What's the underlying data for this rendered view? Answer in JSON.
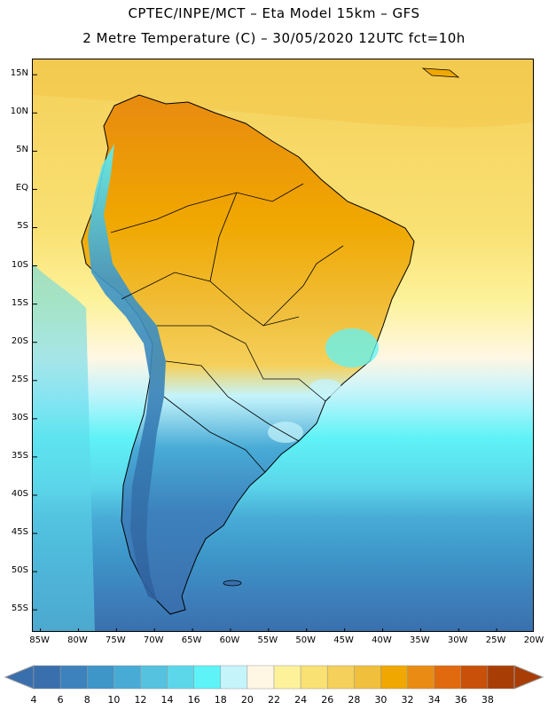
{
  "header": {
    "line1": "CPTEC/INPE/MCT –   Eta Model 15km – GFS",
    "line2": "2 Metre Temperature (C) – 30/05/2020 12UTC fct=10h"
  },
  "map": {
    "lon_range": [
      -86,
      -20
    ],
    "lat_range": [
      -58,
      17
    ],
    "y_ticks": [
      "15N",
      "10N",
      "5N",
      "EQ",
      "5S",
      "10S",
      "15S",
      "20S",
      "25S",
      "30S",
      "35S",
      "40S",
      "45S",
      "50S",
      "55S"
    ],
    "x_ticks": [
      "85W",
      "80W",
      "75W",
      "70W",
      "65W",
      "60W",
      "55W",
      "50W",
      "45W",
      "40W",
      "35W",
      "30W",
      "25W",
      "20W"
    ]
  },
  "colorbar": {
    "labels": [
      "4",
      "6",
      "8",
      "10",
      "12",
      "14",
      "16",
      "18",
      "20",
      "22",
      "24",
      "26",
      "28",
      "30",
      "32",
      "34",
      "36",
      "38"
    ],
    "colors": [
      "#3a6fad",
      "#3d82bd",
      "#3d95c8",
      "#48abd6",
      "#55c2df",
      "#5cd7ea",
      "#5ef3f7",
      "#c5f4fb",
      "#fff7e4",
      "#fdf29a",
      "#f9e173",
      "#f5d05a",
      "#f0bf3c",
      "#f0a800",
      "#ea8c13",
      "#e06a0d",
      "#c85008",
      "#a83d05"
    ]
  },
  "colors": {
    "land_outline": "#000000"
  }
}
